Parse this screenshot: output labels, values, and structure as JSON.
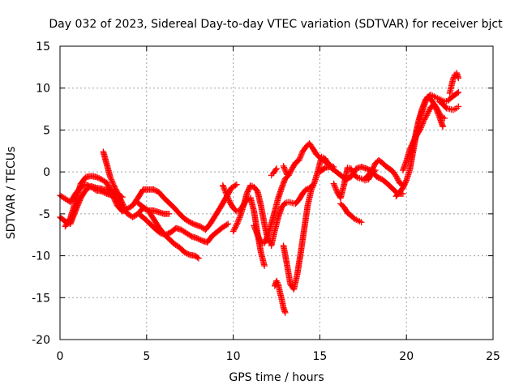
{
  "chart_data": {
    "type": "scatter",
    "title": "Day 032 of 2023, Sidereal Day-to-day VTEC variation (SDTVAR) for receiver bjct",
    "xlabel": "GPS time / hours",
    "ylabel": "SDTVAR / TECUs",
    "xlim": [
      0,
      25
    ],
    "ylim": [
      -20,
      15
    ],
    "xticks": [
      0,
      5,
      10,
      15,
      20,
      25
    ],
    "yticks": [
      -20,
      -15,
      -10,
      -5,
      0,
      5,
      10,
      15
    ],
    "grid": true,
    "marker": "plus",
    "color": "#ff0000",
    "series": [
      {
        "x": [
          0.0,
          0.3,
          0.6,
          0.9,
          1.2,
          1.5,
          1.8,
          2.1,
          2.4,
          2.7,
          3.0,
          3.3,
          3.6,
          3.9,
          4.2,
          4.5,
          4.8,
          5.1,
          5.4,
          5.7,
          6.0,
          6.3,
          6.6,
          6.9,
          7.2,
          7.5,
          7.8,
          8.0
        ],
        "y": [
          -2.8,
          -3.2,
          -3.6,
          -2.6,
          -1.8,
          -1.5,
          -1.8,
          -2.2,
          -2.3,
          -2.6,
          -2.8,
          -3.3,
          -4.3,
          -5.0,
          -5.4,
          -5.0,
          -4.3,
          -4.6,
          -5.6,
          -6.6,
          -7.4,
          -8.0,
          -8.6,
          -9.0,
          -9.6,
          -9.9,
          -10.0,
          -10.3
        ]
      },
      {
        "x": [
          0.0,
          0.3,
          0.6,
          0.9,
          1.2,
          1.5,
          1.8,
          2.1,
          2.4,
          2.7,
          3.0,
          3.3,
          3.6
        ],
        "y": [
          -5.4,
          -5.9,
          -6.2,
          -4.6,
          -3.1,
          -2.1,
          -1.7,
          -1.9,
          -2.0,
          -2.2,
          -2.3,
          -2.6,
          -3.0
        ]
      },
      {
        "x": [
          0.3,
          0.6,
          0.9,
          1.2,
          1.5,
          1.8,
          2.1,
          2.4,
          2.7,
          3.0,
          3.3,
          3.6,
          3.9,
          4.2,
          4.5,
          4.8,
          5.1,
          5.4,
          5.7,
          6.0,
          6.3,
          6.6,
          6.9,
          7.2,
          7.5,
          7.8,
          8.1,
          8.4,
          8.7,
          9.0,
          9.3,
          9.6,
          9.9,
          10.2
        ],
        "y": [
          -6.5,
          -5.5,
          -3.5,
          -1.4,
          -0.6,
          -0.5,
          -0.6,
          -0.9,
          -1.3,
          -2.6,
          -4.0,
          -4.7,
          -4.4,
          -4.0,
          -3.1,
          -2.1,
          -2.1,
          -2.1,
          -2.4,
          -3.1,
          -3.7,
          -4.3,
          -5.0,
          -5.6,
          -6.0,
          -6.3,
          -6.5,
          -6.9,
          -6.1,
          -5.1,
          -4.1,
          -3.0,
          -1.9,
          -1.5
        ]
      },
      {
        "x": [
          2.5,
          2.7,
          2.9,
          3.1,
          3.3,
          3.5,
          3.7
        ],
        "y": [
          2.4,
          0.9,
          -0.6,
          -1.6,
          -2.4,
          -3.3,
          -4.2
        ]
      },
      {
        "x": [
          4.5,
          4.8,
          5.1,
          5.4,
          5.7,
          6.0,
          6.3
        ],
        "y": [
          -3.7,
          -4.2,
          -4.6,
          -4.6,
          -4.8,
          -5.0,
          -5.0
        ]
      },
      {
        "x": [
          4.6,
          4.9,
          5.2,
          5.5,
          5.8,
          6.1,
          6.4,
          6.7,
          7.0,
          7.3,
          7.6,
          7.9,
          8.2,
          8.5,
          8.8,
          9.1,
          9.4,
          9.7
        ],
        "y": [
          -5.1,
          -5.6,
          -6.2,
          -6.8,
          -7.3,
          -7.5,
          -7.2,
          -6.7,
          -6.9,
          -7.3,
          -7.7,
          -7.9,
          -8.2,
          -8.4,
          -7.6,
          -7.1,
          -6.6,
          -6.2
        ]
      },
      {
        "x": [
          9.4,
          9.6,
          9.8,
          10.0,
          10.2,
          10.4,
          10.6,
          10.8,
          11.0,
          11.2,
          11.4,
          11.6,
          11.8
        ],
        "y": [
          -1.6,
          -2.6,
          -3.6,
          -4.3,
          -4.7,
          -4.6,
          -3.9,
          -3.3,
          -3.1,
          -4.7,
          -7.3,
          -9.6,
          -11.2
        ]
      },
      {
        "x": [
          10.0,
          10.2,
          10.4,
          10.6,
          10.8,
          11.0,
          11.2,
          11.4,
          11.6,
          11.8,
          12.0,
          12.2
        ],
        "y": [
          -7.1,
          -6.3,
          -5.3,
          -4.0,
          -2.5,
          -1.6,
          -1.8,
          -2.3,
          -4.0,
          -6.2,
          -8.1,
          -8.5
        ]
      },
      {
        "x": [
          11.2,
          11.4,
          11.6,
          11.8,
          12.0,
          12.2,
          12.4,
          12.6,
          12.8,
          13.0,
          13.2,
          13.4,
          13.6,
          13.8,
          14.0,
          14.2,
          14.4,
          14.6,
          14.8,
          15.0,
          15.2,
          15.4,
          15.6,
          15.8
        ],
        "y": [
          -6.4,
          -7.5,
          -8.4,
          -8.5,
          -7.6,
          -6.2,
          -4.7,
          -3.1,
          -1.9,
          -0.8,
          -0.4,
          0.4,
          1.1,
          1.4,
          2.4,
          3.0,
          3.4,
          2.8,
          2.1,
          1.7,
          1.4,
          1.1,
          0.8,
          0.6
        ]
      },
      {
        "x": [
          12.2,
          12.4,
          12.6,
          12.8,
          13.0,
          13.2,
          13.4,
          13.6,
          13.8,
          14.0,
          14.2,
          14.4,
          14.6
        ],
        "y": [
          -8.8,
          -7.0,
          -5.4,
          -4.2,
          -3.7,
          -3.6,
          -3.7,
          -3.8,
          -3.3,
          -2.6,
          -2.1,
          -1.9,
          -1.6
        ]
      },
      {
        "x": [
          12.4,
          12.5,
          12.6,
          12.7,
          12.8,
          12.9,
          13.0
        ],
        "y": [
          -13.6,
          -13.0,
          -13.4,
          -14.4,
          -15.2,
          -16.2,
          -16.8
        ]
      },
      {
        "x": [
          12.2,
          12.3,
          12.4,
          12.5
        ],
        "y": [
          -0.4,
          -0.2,
          0.1,
          0.4
        ]
      },
      {
        "x": [
          12.9,
          13.0,
          13.1
        ],
        "y": [
          0.7,
          0.2,
          -0.3
        ]
      },
      {
        "x": [
          12.9,
          13.1,
          13.3,
          13.5,
          13.7,
          13.9,
          14.1,
          14.3,
          14.5,
          14.7,
          14.9,
          15.1,
          15.3,
          15.5
        ],
        "y": [
          -8.8,
          -11.0,
          -13.4,
          -14.0,
          -12.2,
          -9.6,
          -6.8,
          -4.0,
          -2.2,
          -1.2,
          0.2,
          1.8,
          1.6,
          0.9
        ]
      },
      {
        "x": [
          15.0,
          15.3,
          15.6,
          15.9,
          16.2,
          16.5,
          16.8,
          17.1,
          17.4,
          17.7,
          18.0,
          18.3,
          18.6,
          18.9,
          19.2,
          19.5,
          19.8
        ],
        "y": [
          0.0,
          0.5,
          0.6,
          0.1,
          -0.4,
          -0.9,
          -0.6,
          0.4,
          0.6,
          0.4,
          0.1,
          -0.6,
          -0.9,
          -1.4,
          -2.0,
          -2.6,
          -2.6
        ]
      },
      {
        "x": [
          15.8,
          16.0,
          16.2,
          16.4,
          16.6,
          16.8,
          17.0,
          17.2,
          17.4,
          17.6,
          17.8,
          18.0,
          18.2
        ],
        "y": [
          -1.4,
          -2.4,
          -3.1,
          -1.5,
          0.5,
          0.4,
          -0.4,
          -0.7,
          -0.8,
          -1.0,
          -0.9,
          -0.2,
          0.2
        ]
      },
      {
        "x": [
          16.2,
          16.4,
          16.6,
          16.8,
          17.0,
          17.2,
          17.4
        ],
        "y": [
          -3.8,
          -4.2,
          -4.9,
          -5.2,
          -5.6,
          -5.8,
          -6.0
        ]
      },
      {
        "x": [
          17.6,
          17.8,
          18.0,
          18.2,
          18.4,
          18.6,
          18.8,
          19.0,
          19.2,
          19.4,
          19.6,
          19.8
        ],
        "y": [
          -0.8,
          -0.4,
          0.2,
          1.0,
          1.4,
          1.1,
          0.7,
          0.4,
          0.1,
          -0.5,
          -1.3,
          -1.6
        ]
      },
      {
        "x": [
          19.4,
          19.6,
          19.8,
          20.0,
          20.2,
          20.4,
          20.6,
          20.8,
          21.0,
          21.2,
          21.4,
          21.6,
          21.8,
          22.0,
          22.2,
          22.4,
          22.6,
          22.8,
          23.0
        ],
        "y": [
          -2.9,
          -2.4,
          -1.9,
          -1.0,
          0.3,
          2.6,
          4.8,
          6.6,
          7.8,
          8.9,
          9.2,
          9.0,
          8.8,
          8.6,
          8.4,
          8.5,
          8.9,
          9.2,
          9.5
        ]
      },
      {
        "x": [
          19.8,
          20.0,
          20.2,
          20.4,
          20.6,
          20.8,
          21.0,
          21.2,
          21.4,
          21.6,
          21.8,
          22.0,
          22.2
        ],
        "y": [
          0.2,
          1.3,
          2.7,
          3.6,
          4.4,
          5.1,
          6.1,
          6.9,
          7.7,
          8.1,
          7.4,
          6.6,
          6.4
        ]
      },
      {
        "x": [
          20.3,
          20.5,
          20.7,
          20.9,
          21.1,
          21.3,
          21.5,
          21.7,
          21.9,
          22.1
        ],
        "y": [
          2.4,
          4.2,
          6.1,
          7.5,
          8.6,
          8.9,
          8.4,
          7.6,
          6.6,
          5.4
        ]
      },
      {
        "x": [
          21.9,
          22.1,
          22.3,
          22.5,
          22.7,
          22.9,
          23.0
        ],
        "y": [
          8.4,
          8.1,
          7.6,
          7.5,
          7.4,
          7.6,
          7.8
        ]
      },
      {
        "x": [
          22.5,
          22.6,
          22.7,
          22.8,
          22.9,
          23.0
        ],
        "y": [
          9.4,
          10.3,
          11.1,
          11.6,
          11.8,
          11.2
        ]
      }
    ]
  }
}
